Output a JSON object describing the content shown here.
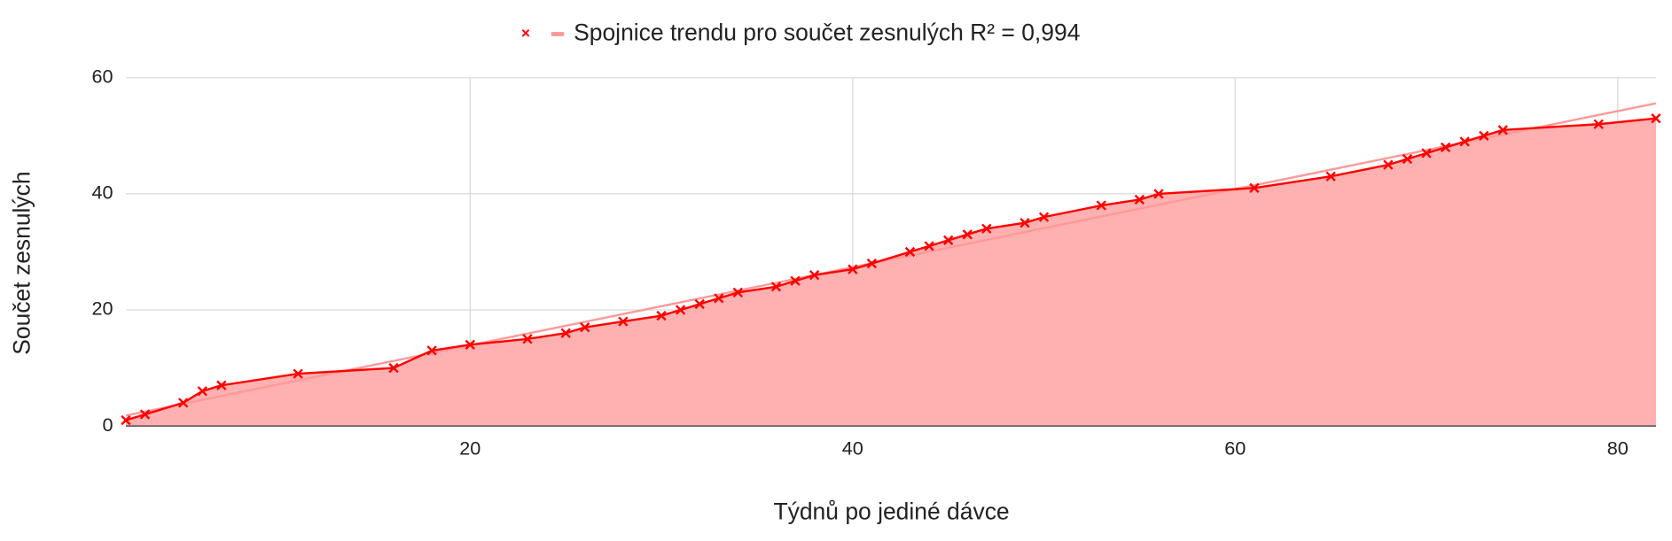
{
  "chart_data": {
    "type": "area",
    "x_label": "Týdnů po jediné dávce",
    "y_label": "Součet zesnulých",
    "x": [
      2,
      3,
      5,
      6,
      7,
      11,
      16,
      18,
      20,
      23,
      25,
      26,
      28,
      30,
      31,
      32,
      33,
      34,
      36,
      37,
      38,
      40,
      41,
      43,
      44,
      45,
      46,
      47,
      49,
      50,
      53,
      55,
      56,
      61,
      65,
      68,
      69,
      70,
      71,
      72,
      73,
      74,
      79,
      82
    ],
    "series": [
      {
        "color": "#ff0000",
        "fill": "#ffb0b0",
        "values": [
          1,
          2,
          4,
          6,
          7,
          9,
          10,
          13,
          14,
          15,
          16,
          17,
          18,
          19,
          20,
          21,
          22,
          23,
          24,
          25,
          26,
          27,
          28,
          30,
          31,
          32,
          33,
          34,
          35,
          36,
          38,
          39,
          40,
          41,
          43,
          45,
          46,
          47,
          48,
          49,
          50,
          51,
          52,
          53
        ]
      }
    ],
    "trendline": {
      "name": "Spojnice trendu pro součet zesnulých R² = 0,994",
      "color": "#ff9999",
      "x": [
        2,
        82
      ],
      "values": [
        1.8,
        55.6
      ]
    },
    "xlim": [
      2,
      82
    ],
    "xticks": [
      20,
      40,
      60,
      80
    ],
    "ylim": [
      0,
      60
    ],
    "yticks": [
      0,
      20,
      40,
      60
    ],
    "grid": true
  }
}
